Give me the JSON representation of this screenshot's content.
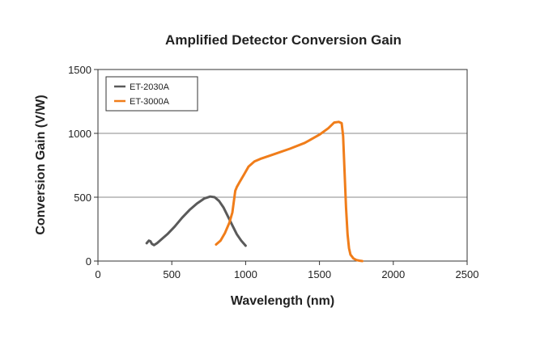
{
  "chart_data": {
    "type": "line",
    "title": "Amplified Detector Conversion Gain",
    "xlabel": "Wavelength (nm)",
    "ylabel": "Conversion Gain (V/W)",
    "xlim": [
      0,
      2500
    ],
    "ylim": [
      0,
      1500
    ],
    "x_ticks": [
      "0",
      "500",
      "1000",
      "1500",
      "2000",
      "2500"
    ],
    "y_ticks": [
      "0",
      "500",
      "1000",
      "1500"
    ],
    "grid": "horizontal",
    "legend_position": "top-left",
    "series": [
      {
        "name": "ET-2030A",
        "color": "#5a5a5a",
        "x": [
          330,
          345,
          355,
          365,
          380,
          400,
          430,
          470,
          520,
          570,
          620,
          670,
          720,
          760,
          790,
          820,
          850,
          880,
          910,
          940,
          970,
          1000
        ],
        "y": [
          140,
          160,
          155,
          135,
          125,
          140,
          170,
          210,
          270,
          340,
          400,
          450,
          490,
          505,
          500,
          470,
          420,
          350,
          280,
          210,
          160,
          120
        ]
      },
      {
        "name": "ET-3000A",
        "color": "#f07d1a",
        "x": [
          800,
          830,
          860,
          890,
          910,
          930,
          940,
          960,
          990,
          1020,
          1060,
          1100,
          1150,
          1200,
          1300,
          1400,
          1500,
          1560,
          1600,
          1630,
          1650,
          1660,
          1670,
          1680,
          1690,
          1700,
          1710,
          1730,
          1750,
          1770,
          1790
        ],
        "y": [
          130,
          160,
          220,
          300,
          380,
          550,
          580,
          620,
          680,
          740,
          780,
          800,
          820,
          840,
          880,
          925,
          990,
          1040,
          1085,
          1090,
          1080,
          980,
          700,
          420,
          210,
          100,
          50,
          20,
          8,
          3,
          0
        ]
      }
    ]
  }
}
